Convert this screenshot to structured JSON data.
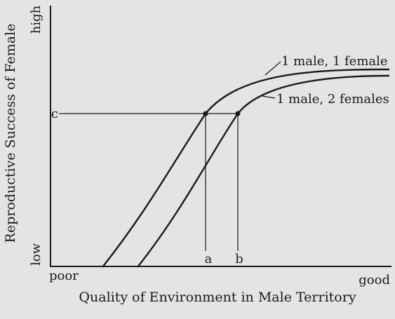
{
  "axes": {
    "y_label": "Reproductive Success of Female",
    "y_high": "high",
    "y_low": "low",
    "x_label": "Quality of Environment in Male Territory",
    "x_low": "poor",
    "x_high": "good"
  },
  "curves": {
    "monogamy_label": "1 male, 1 female",
    "polygyny_label": "1 male, 2 females"
  },
  "markers": {
    "c": "c",
    "a": "a",
    "b": "b"
  }
}
